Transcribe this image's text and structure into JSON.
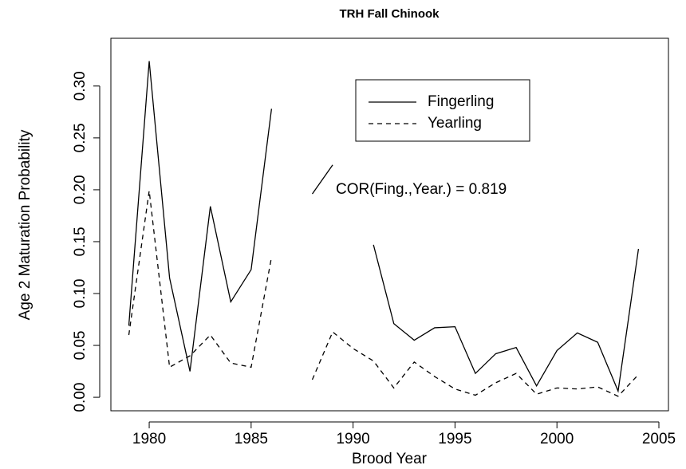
{
  "chart_data": {
    "type": "line",
    "title": "TRH Fall Chinook",
    "xlabel": "Brood Year",
    "ylabel": "Age 2 Maturation Probability",
    "x": [
      1979,
      1980,
      1981,
      1982,
      1983,
      1984,
      1985,
      1986,
      1987,
      1988,
      1989,
      1990,
      1991,
      1992,
      1993,
      1994,
      1995,
      1996,
      1997,
      1998,
      1999,
      2000,
      2001,
      2002,
      2003,
      2004
    ],
    "series": [
      {
        "name": "Fingerling",
        "color": "#000000",
        "linestyle": "solid",
        "values": [
          0.069,
          0.324,
          0.115,
          0.025,
          0.184,
          0.092,
          0.123,
          0.278,
          null,
          0.196,
          0.224,
          null,
          0.147,
          0.071,
          0.055,
          0.067,
          0.068,
          0.023,
          0.042,
          0.048,
          0.011,
          0.045,
          0.062,
          0.053,
          0.006,
          0.143
        ]
      },
      {
        "name": "Yearling",
        "color": "#000000",
        "linestyle": "dashed",
        "values": [
          0.06,
          0.199,
          0.029,
          0.04,
          0.06,
          0.033,
          0.029,
          0.135,
          null,
          0.017,
          0.063,
          0.047,
          0.035,
          0.009,
          0.034,
          0.02,
          0.008,
          0.002,
          0.014,
          0.023,
          0.003,
          0.009,
          0.008,
          0.01,
          0.001,
          0.022
        ]
      }
    ],
    "annotation": "COR(Fing.,Year.) = 0.819",
    "xlim": [
      1978.12,
      2005.47
    ],
    "xticks": [
      1980,
      1985,
      1990,
      1995,
      2000,
      2005
    ],
    "ylim": [
      -0.013,
      0.346
    ],
    "yticks": [
      {
        "value": 0,
        "label": "0.00"
      },
      {
        "value": 0.05,
        "label": "0.05"
      },
      {
        "value": 0.1,
        "label": "0.10"
      },
      {
        "value": 0.15,
        "label": "0.15"
      },
      {
        "value": 0.2,
        "label": "0.20"
      },
      {
        "value": 0.25,
        "label": "0.25"
      },
      {
        "value": 0.3,
        "label": "0.30"
      }
    ],
    "grid": false,
    "legend": "top"
  }
}
